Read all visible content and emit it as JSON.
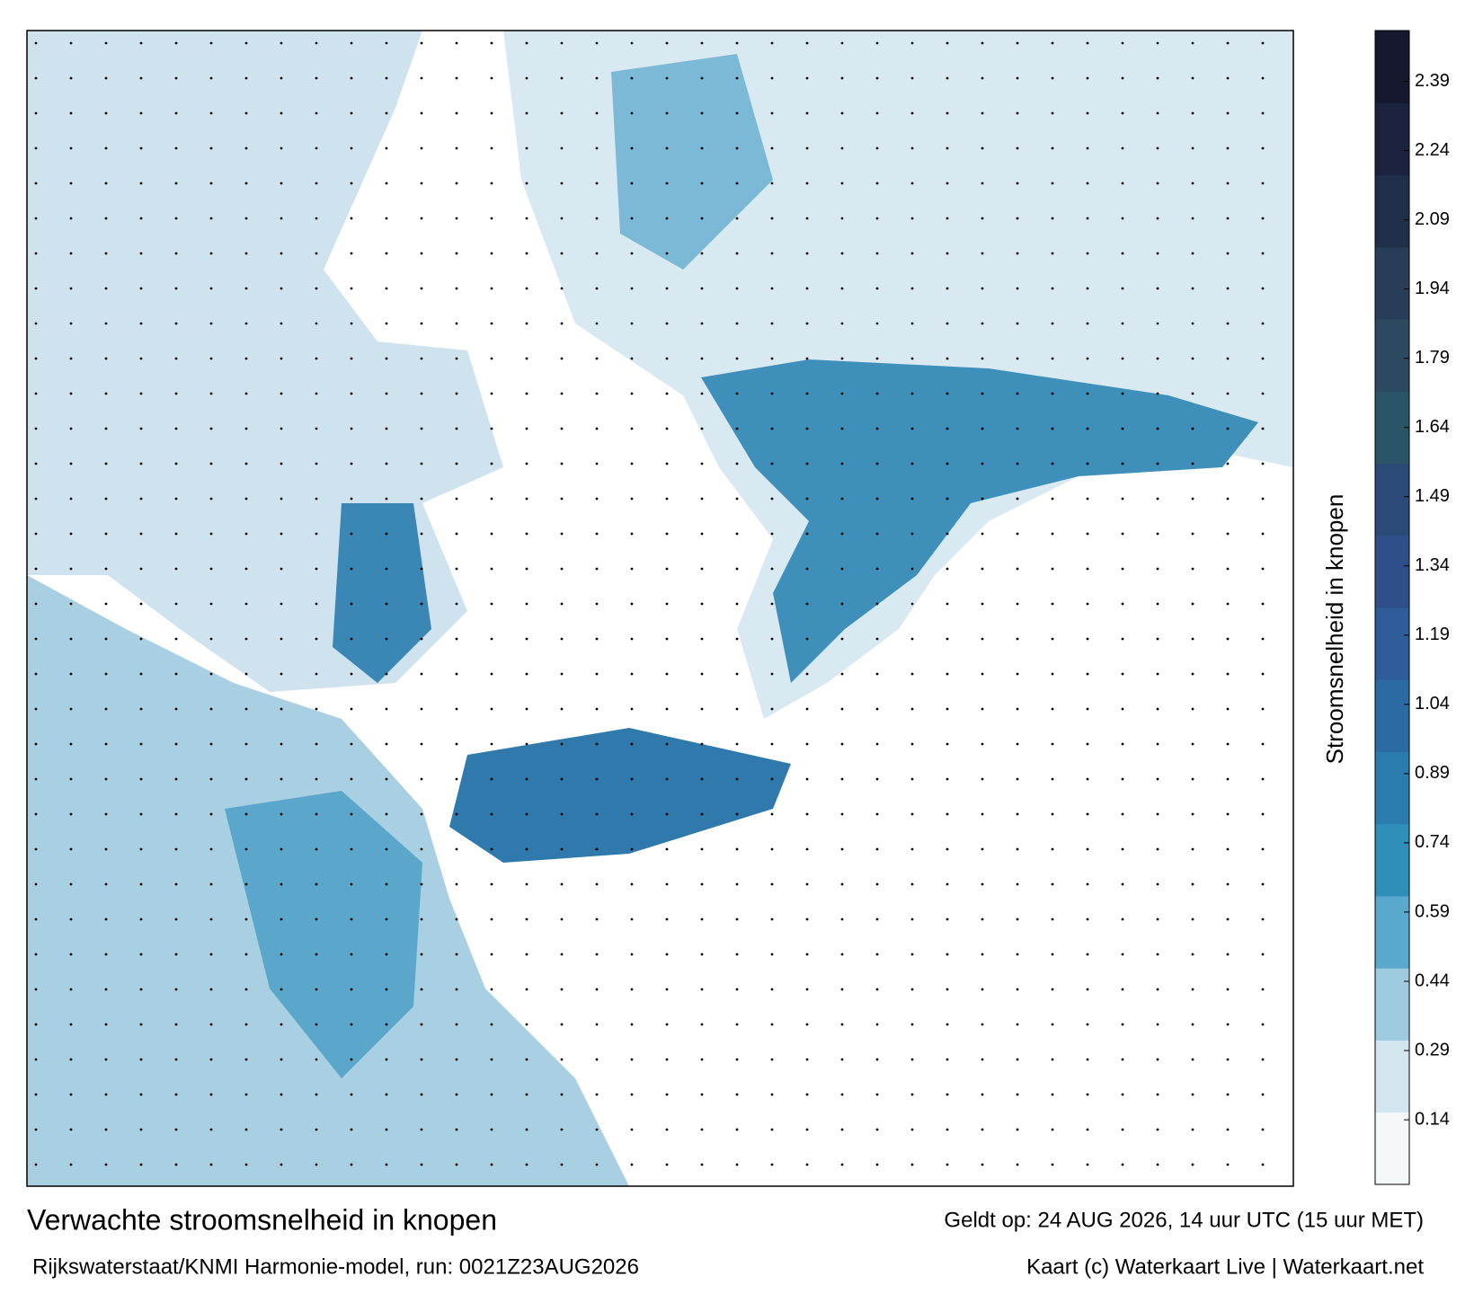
{
  "map": {
    "title": "Verwachte stroomsnelheid in knopen",
    "source": "Rijkswaterstaat/KNMI Harmonie-model, run: 0021Z23AUG2026",
    "valid": "Geldt op: 24 AUG 2026, 14 uur UTC (15 uur MET)",
    "credit": "Kaart (c) Waterkaart Live | Waterkaart.net",
    "colorbar": {
      "label": "Stroomsnelheid in knopen",
      "lim": [
        0,
        2.5
      ],
      "ticks": [
        0.14,
        0.29,
        0.44,
        0.59,
        0.74,
        0.89,
        1.04,
        1.19,
        1.34,
        1.49,
        1.64,
        1.79,
        1.94,
        2.09,
        2.24,
        2.39
      ],
      "colors": [
        "#f4f8fb",
        "#d3e6ef",
        "#9fcbe0",
        "#5aa9cc",
        "#2f8fb8",
        "#2a7bae",
        "#2b6aa3",
        "#2d5c98",
        "#2f4f8a",
        "#2c4a78",
        "#2a5566",
        "#2b4a5f",
        "#283d57",
        "#1f2f4a",
        "#1a223e",
        "#15182f"
      ]
    }
  }
}
